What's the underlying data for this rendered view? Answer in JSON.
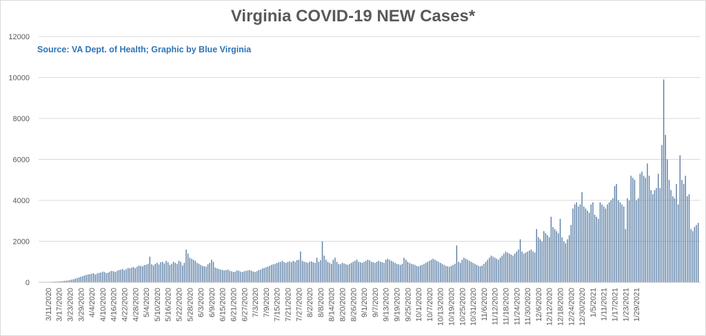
{
  "chart_data": {
    "type": "bar",
    "title": "Virginia COVID-19 NEW Cases*",
    "subtitle": "Source: VA Dept. of Health; Graphic by Blue Virginia",
    "xlabel": "",
    "ylabel": "",
    "ylim": [
      0,
      12000
    ],
    "yticks": [
      "0",
      "2000",
      "4000",
      "6000",
      "8000",
      "10000",
      "12000"
    ],
    "grid": true,
    "legend": "none",
    "bar_color": "#5b7fa6",
    "start_date": "3/7/2020",
    "x_tick_labels": [
      "3/11/2020",
      "3/17/2020",
      "3/23/2020",
      "3/29/2020",
      "4/4/2020",
      "4/10/2020",
      "4/16/2020",
      "4/22/2020",
      "4/28/2020",
      "5/4/2020",
      "5/10/2020",
      "5/16/2020",
      "5/22/2020",
      "5/28/2020",
      "6/3/2020",
      "6/9/2020",
      "6/15/2020",
      "6/21/2020",
      "6/27/2020",
      "7/3/2020",
      "7/9/2020",
      "7/15/2020",
      "7/21/2020",
      "7/27/2020",
      "8/2/2020",
      "8/8/2020",
      "8/14/2020",
      "8/20/2020",
      "8/26/2020",
      "9/1/2020",
      "9/7/2020",
      "9/13/2020",
      "9/19/2020",
      "9/25/2020",
      "10/1/2020",
      "10/7/2020",
      "10/13/2020",
      "10/19/2020",
      "10/25/2020",
      "10/31/2020",
      "11/6/2020",
      "11/12/2020",
      "11/18/2020",
      "11/24/2020",
      "11/30/2020",
      "12/6/2020",
      "12/12/2020",
      "12/18/2020",
      "12/24/2020",
      "12/30/2020",
      "1/5/2021",
      "1/11/2021",
      "1/17/2021",
      "1/23/2021",
      "1/29/2021"
    ],
    "values": [
      0,
      2,
      5,
      10,
      15,
      20,
      25,
      30,
      35,
      40,
      45,
      50,
      60,
      70,
      80,
      90,
      110,
      130,
      150,
      180,
      210,
      240,
      270,
      300,
      330,
      360,
      380,
      400,
      420,
      440,
      380,
      430,
      460,
      480,
      520,
      500,
      450,
      470,
      520,
      560,
      540,
      500,
      560,
      600,
      620,
      650,
      590,
      640,
      700,
      680,
      720,
      740,
      690,
      760,
      820,
      800,
      780,
      840,
      860,
      900,
      1250,
      880,
      820,
      900,
      950,
      870,
      980,
      1000,
      920,
      1050,
      980,
      850,
      900,
      1000,
      950,
      900,
      1050,
      1000,
      820,
      950,
      1600,
      1400,
      1200,
      1150,
      1100,
      1050,
      950,
      900,
      850,
      800,
      780,
      760,
      880,
      950,
      1100,
      1000,
      720,
      680,
      650,
      620,
      600,
      580,
      600,
      620,
      560,
      540,
      500,
      520,
      580,
      560,
      520,
      500,
      540,
      560,
      580,
      600,
      560,
      520,
      500,
      540,
      600,
      620,
      680,
      700,
      740,
      760,
      800,
      850,
      880,
      900,
      940,
      980,
      1000,
      1050,
      980,
      950,
      1000,
      1020,
      980,
      1050,
      1000,
      1080,
      1100,
      1500,
      1050,
      1000,
      980,
      950,
      1000,
      1020,
      980,
      950,
      1200,
      1000,
      1080,
      2000,
      1300,
      1100,
      1000,
      950,
      900,
      1100,
      1200,
      1000,
      900,
      880,
      950,
      920,
      880,
      850,
      900,
      950,
      1000,
      1050,
      1100,
      1000,
      980,
      950,
      1000,
      1050,
      1100,
      1080,
      1000,
      980,
      950,
      1000,
      1050,
      1000,
      980,
      950,
      1100,
      1150,
      1100,
      1050,
      1000,
      950,
      900,
      880,
      850,
      900,
      1200,
      1100,
      1000,
      950,
      900,
      880,
      850,
      800,
      780,
      820,
      850,
      900,
      950,
      1000,
      1050,
      1100,
      1150,
      1100,
      1050,
      1000,
      950,
      900,
      850,
      800,
      780,
      760,
      800,
      850,
      900,
      1800,
      1000,
      950,
      1100,
      1200,
      1150,
      1100,
      1050,
      1000,
      950,
      900,
      850,
      800,
      780,
      820,
      900,
      1000,
      1100,
      1200,
      1300,
      1250,
      1200,
      1150,
      1100,
      1200,
      1300,
      1400,
      1500,
      1450,
      1400,
      1350,
      1300,
      1400,
      1500,
      1600,
      2100,
      1500,
      1400,
      1450,
      1500,
      1550,
      1600,
      1500,
      1450,
      2600,
      2200,
      2100,
      2000,
      2500,
      2400,
      2300,
      2200,
      3200,
      2700,
      2600,
      2500,
      2400,
      3100,
      2200,
      2000,
      1900,
      2100,
      2300,
      2800,
      3600,
      3800,
      3900,
      3700,
      3800,
      4400,
      3700,
      3600,
      3500,
      3400,
      3800,
      3900,
      3300,
      3200,
      3100,
      3900,
      3800,
      3700,
      3600,
      3800,
      3900,
      4000,
      4100,
      4700,
      4800,
      4000,
      3900,
      3800,
      3700,
      2600,
      4100,
      4000,
      5200,
      5100,
      5000,
      4000,
      4100,
      5300,
      5400,
      5200,
      5100,
      5800,
      5200,
      4500,
      4300,
      4500,
      4600,
      5300,
      4600,
      6700,
      9900,
      7200,
      6000,
      5000,
      4500,
      4200,
      4100,
      4800,
      3800,
      6200,
      5000,
      4800,
      5200,
      4200,
      4300,
      2600,
      2500,
      2700,
      2800,
      2900
    ]
  }
}
